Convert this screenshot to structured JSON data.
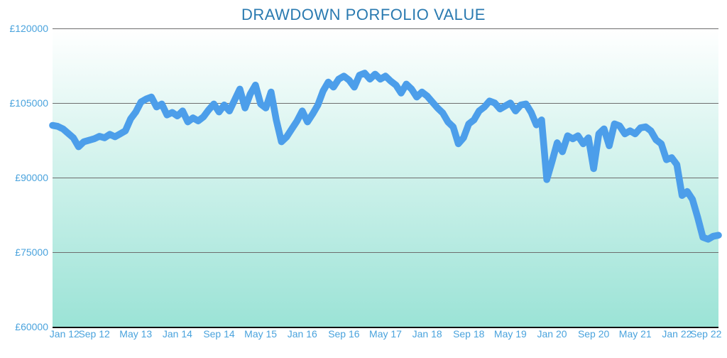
{
  "chart": {
    "type": "line",
    "title": "DRAWDOWN PORFOLIO VALUE",
    "title_color": "#2a7ab0",
    "title_fontsize": 22,
    "label_color": "#4aa3dd",
    "axis_label_fontsize": 14,
    "plot_background_top": "#ffffff",
    "plot_background_bottom": "#9be3d6",
    "grid_color": "#6e6e6e",
    "baseline_color": "#111111",
    "line_color": "#4c9eea",
    "line_width": 4,
    "y": {
      "min": 60000,
      "max": 120000,
      "ticks": [
        60000,
        75000,
        90000,
        105000,
        120000
      ],
      "tick_labels": [
        "£60000",
        "£75000",
        "£90000",
        "£105000",
        "£120000"
      ]
    },
    "x": {
      "count": 129,
      "tick_labels": [
        "Jan 12",
        "Sep 12",
        "May 13",
        "Jan 14",
        "Sep 14",
        "May 15",
        "Jan 16",
        "Sep 16",
        "May 17",
        "Jan 18",
        "Sep 18",
        "May 19",
        "Jan 20",
        "Sep 20",
        "May 21",
        "Jan 22",
        "Sep 22"
      ],
      "tick_indices": [
        0,
        8,
        16,
        24,
        32,
        40,
        48,
        56,
        64,
        72,
        80,
        88,
        96,
        104,
        112,
        120,
        128
      ]
    },
    "series": {
      "name": "portfolio_value",
      "values": [
        100500,
        100300,
        99800,
        98900,
        98000,
        96200,
        97200,
        97500,
        97800,
        98300,
        98000,
        98700,
        98200,
        98800,
        99400,
        101800,
        103200,
        105200,
        105800,
        106200,
        104200,
        104800,
        102600,
        103100,
        102400,
        103400,
        101200,
        102000,
        101400,
        102200,
        103600,
        104800,
        103200,
        104600,
        103400,
        105600,
        107800,
        104000,
        106800,
        108600,
        104800,
        104000,
        107200,
        101600,
        97200,
        98200,
        99800,
        101400,
        103400,
        101200,
        102800,
        104600,
        107400,
        109200,
        108200,
        109800,
        110400,
        109600,
        108200,
        110600,
        111000,
        109800,
        110800,
        109800,
        110400,
        109400,
        108600,
        107000,
        108800,
        107800,
        106200,
        107200,
        106400,
        105200,
        104000,
        103000,
        101200,
        100200,
        96800,
        98000,
        100800,
        101600,
        103400,
        104200,
        105400,
        105000,
        103800,
        104400,
        105000,
        103400,
        104600,
        104800,
        103100,
        100600,
        101600,
        89600,
        93200,
        97000,
        95200,
        98400,
        97800,
        98400,
        96800,
        98000,
        91800,
        98800,
        99800,
        96400,
        100800,
        100400,
        98800,
        99400,
        98800,
        100000,
        100200,
        99400,
        97600,
        96800,
        93600,
        94000,
        92600,
        86400,
        87200,
        85600,
        82000,
        78000,
        77600,
        78200,
        78400
      ]
    }
  }
}
